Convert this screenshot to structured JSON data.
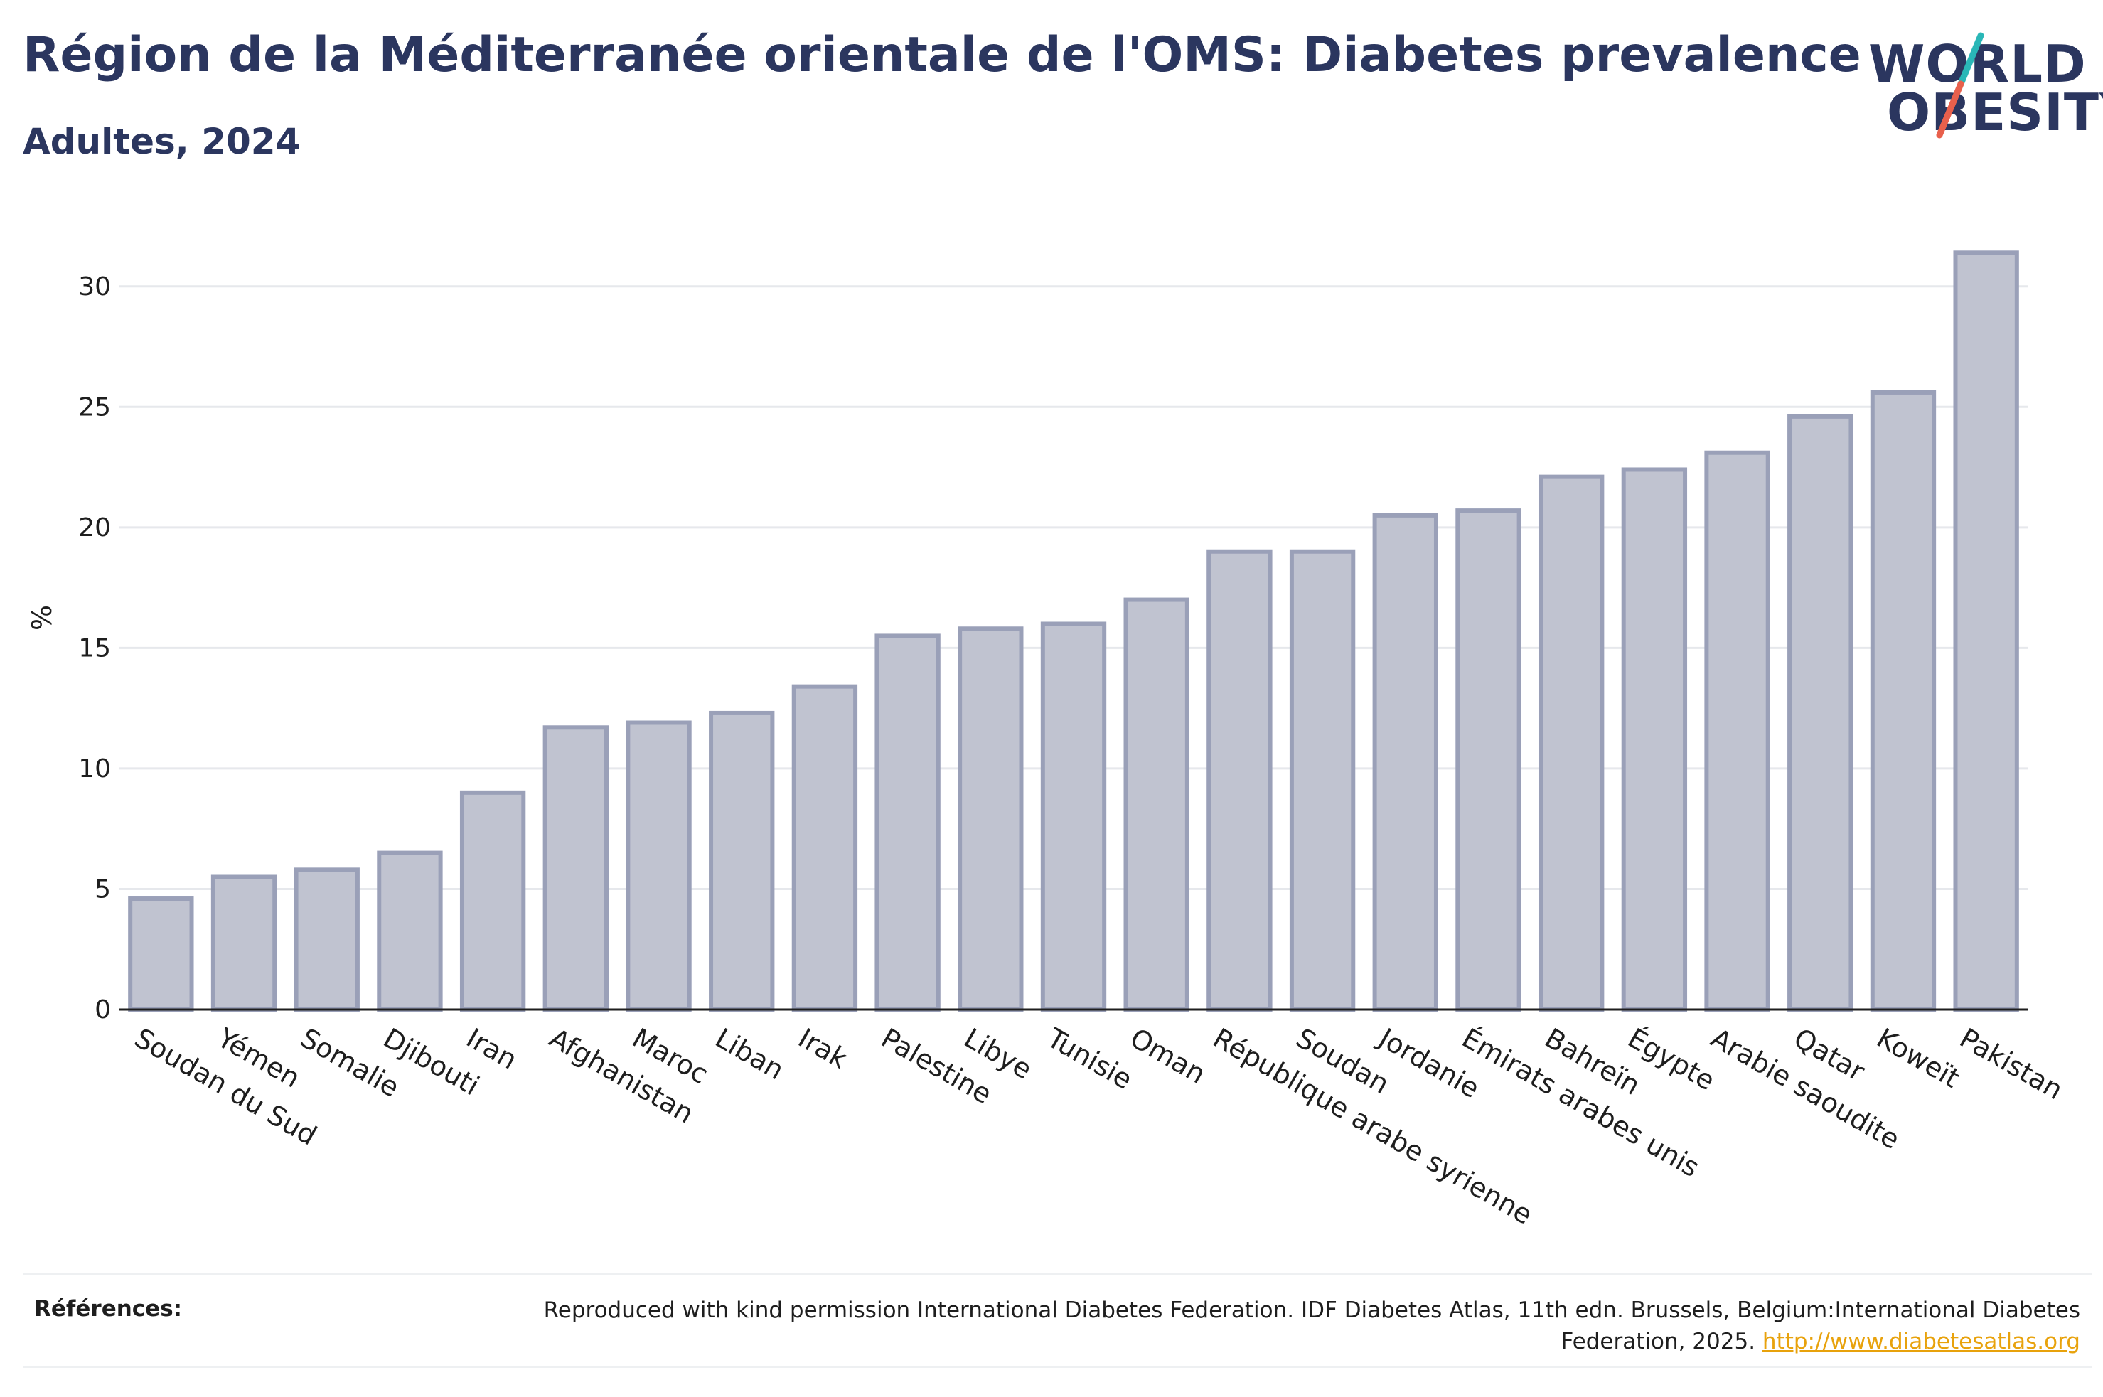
{
  "header": {
    "title": "Région de la Méditerranée orientale de l'OMS: Diabetes prevalence",
    "subtitle": "Adultes, 2024"
  },
  "logo": {
    "line1": "WORLD",
    "line2": "OBESITY",
    "colors": {
      "text": "#2b365f",
      "slash_top": "#2ab7b7",
      "slash_bottom": "#e8604c"
    }
  },
  "colors": {
    "bar_fill": "#c0c3d0",
    "bar_stroke": "#9aa0b8",
    "grid": "#e6e8ec",
    "axis": "#1e1e1e",
    "text": "#1e1e1e",
    "title": "#2b365f",
    "link": "#e8a20c"
  },
  "chart_data": {
    "type": "bar",
    "ylabel": "%",
    "ylim": [
      0,
      32.5
    ],
    "yticks": [
      0,
      5,
      10,
      15,
      20,
      25,
      30
    ],
    "grid": true,
    "categories": [
      "Soudan du Sud",
      "Yémen",
      "Somalie",
      "Djibouti",
      "Iran",
      "Afghanistan",
      "Maroc",
      "Liban",
      "Irak",
      "Palestine",
      "Libye",
      "Tunisie",
      "Oman",
      "République arabe syrienne",
      "Soudan",
      "Jordanie",
      "Émirats arabes unis",
      "Bahreïn",
      "Égypte",
      "Arabie saoudite",
      "Qatar",
      "Koweït",
      "Pakistan"
    ],
    "values": [
      4.6,
      5.5,
      5.8,
      6.5,
      9.0,
      11.7,
      11.9,
      12.3,
      13.4,
      15.5,
      15.8,
      16.0,
      17.0,
      19.0,
      19.0,
      20.5,
      20.7,
      22.1,
      22.4,
      23.1,
      24.6,
      25.6,
      31.4
    ]
  },
  "references": {
    "label": "Références:",
    "text": "Reproduced with kind permission International Diabetes Federation. IDF Diabetes Atlas, 11th edn. Brussels, Belgium:International Diabetes Federation, 2025.",
    "link": "http://www.diabetesatlas.org"
  }
}
